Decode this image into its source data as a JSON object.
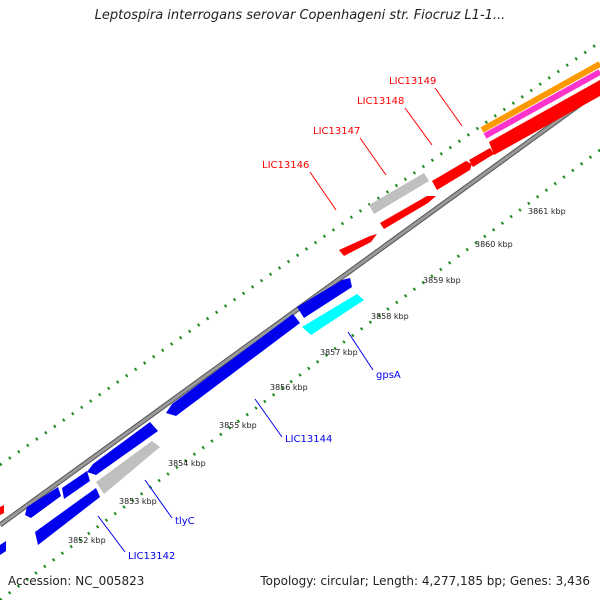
{
  "title": "Leptospira interrogans serovar Copenhageni str. Fiocruz L1-1...",
  "footer": {
    "accession": "Accession: NC_005823",
    "summary": "Topology: circular; Length: 4,277,185 bp; Genes: 3,436"
  },
  "colors": {
    "forward_cds": "#ff0000",
    "reverse_cds": "#0000ee",
    "rna": "#00ffff",
    "other": "#c0c0c0",
    "orange_track": "#ff9900",
    "pink_track": "#ff33cc",
    "backbone": "#808080",
    "tick": "#228b22"
  },
  "kbp_labels": [
    "3852 kbp",
    "3853 kbp",
    "3854 kbp",
    "3855 kbp",
    "3856 kbp",
    "3857 kbp",
    "3858 kbp",
    "3859 kbp",
    "3860 kbp",
    "3861 kbp"
  ],
  "forward_labels": [
    "LIC13146",
    "LIC13147",
    "LIC13148",
    "LIC13149"
  ],
  "reverse_labels": [
    "LIC13142",
    "tlyC",
    "LIC13144",
    "gpsA"
  ]
}
